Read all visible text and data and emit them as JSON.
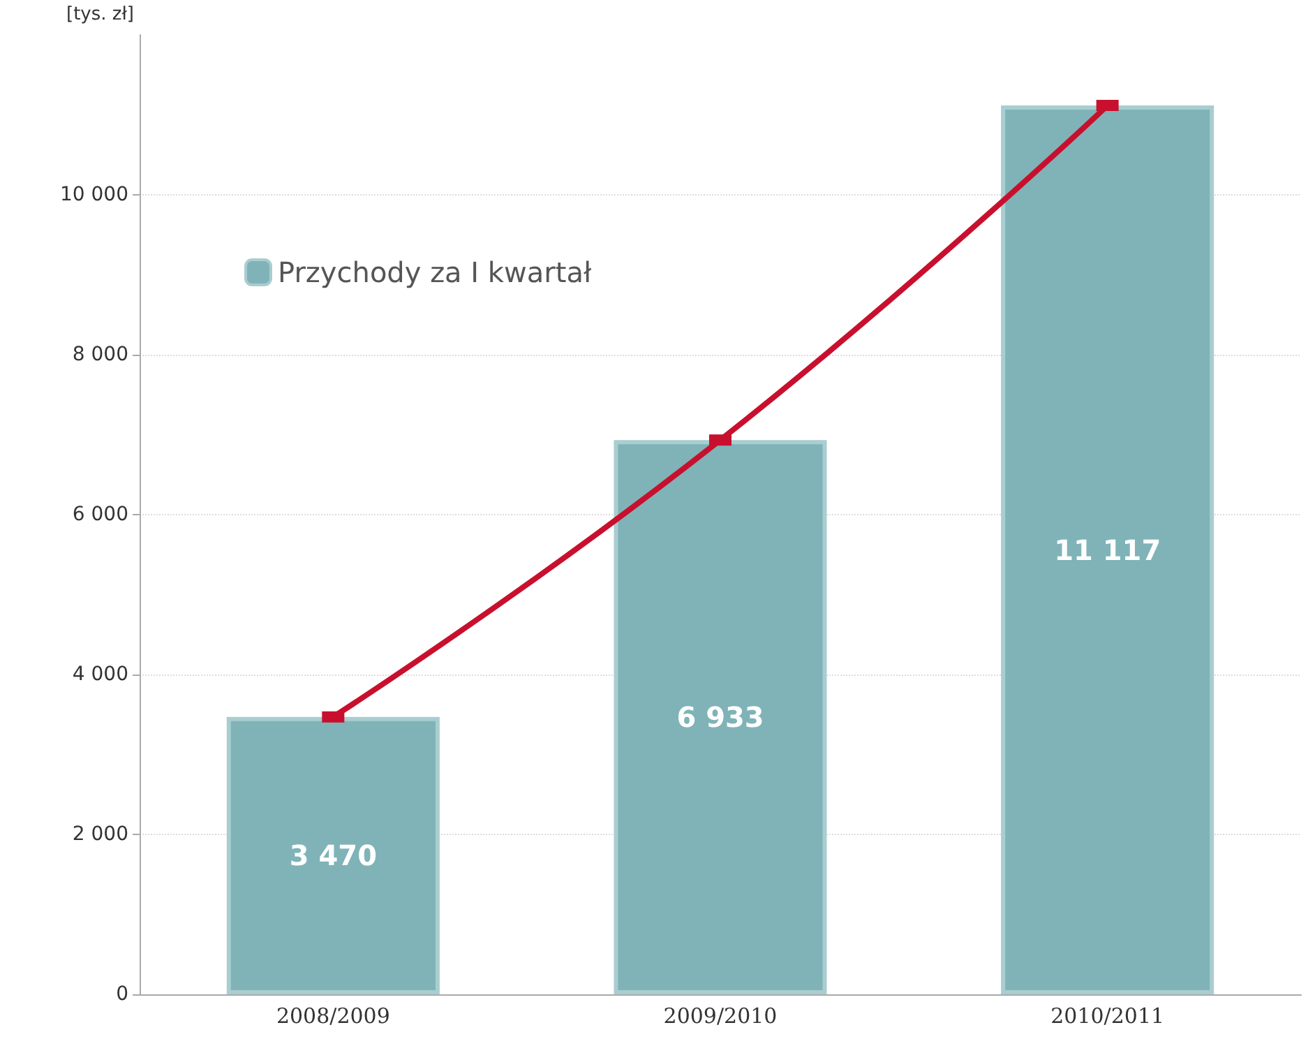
{
  "chart_data": {
    "type": "bar",
    "ylabel": "[tys. zł]",
    "categories": [
      "2008/2009",
      "2009/2010",
      "2010/2011"
    ],
    "series": [
      {
        "name": "Przychody za I kwartał",
        "color": "#7fb3b8",
        "values": [
          3470,
          6933,
          11117
        ],
        "value_labels": [
          "3 470",
          "6 933",
          "11 117"
        ]
      },
      {
        "type": "line",
        "color": "#c8102e",
        "values": [
          3470,
          6933,
          11117
        ],
        "marker": "square",
        "line_style": "solid"
      }
    ],
    "ylim": [
      0,
      12000
    ],
    "yticks": [
      {
        "value": 0,
        "label": "0"
      },
      {
        "value": 2000,
        "label": "2 000"
      },
      {
        "value": 4000,
        "label": "4 000"
      },
      {
        "value": 6000,
        "label": "6 000"
      },
      {
        "value": 8000,
        "label": "8 000"
      },
      {
        "value": 10000,
        "label": "10 000"
      }
    ],
    "grid": "y",
    "legend": "top left"
  }
}
